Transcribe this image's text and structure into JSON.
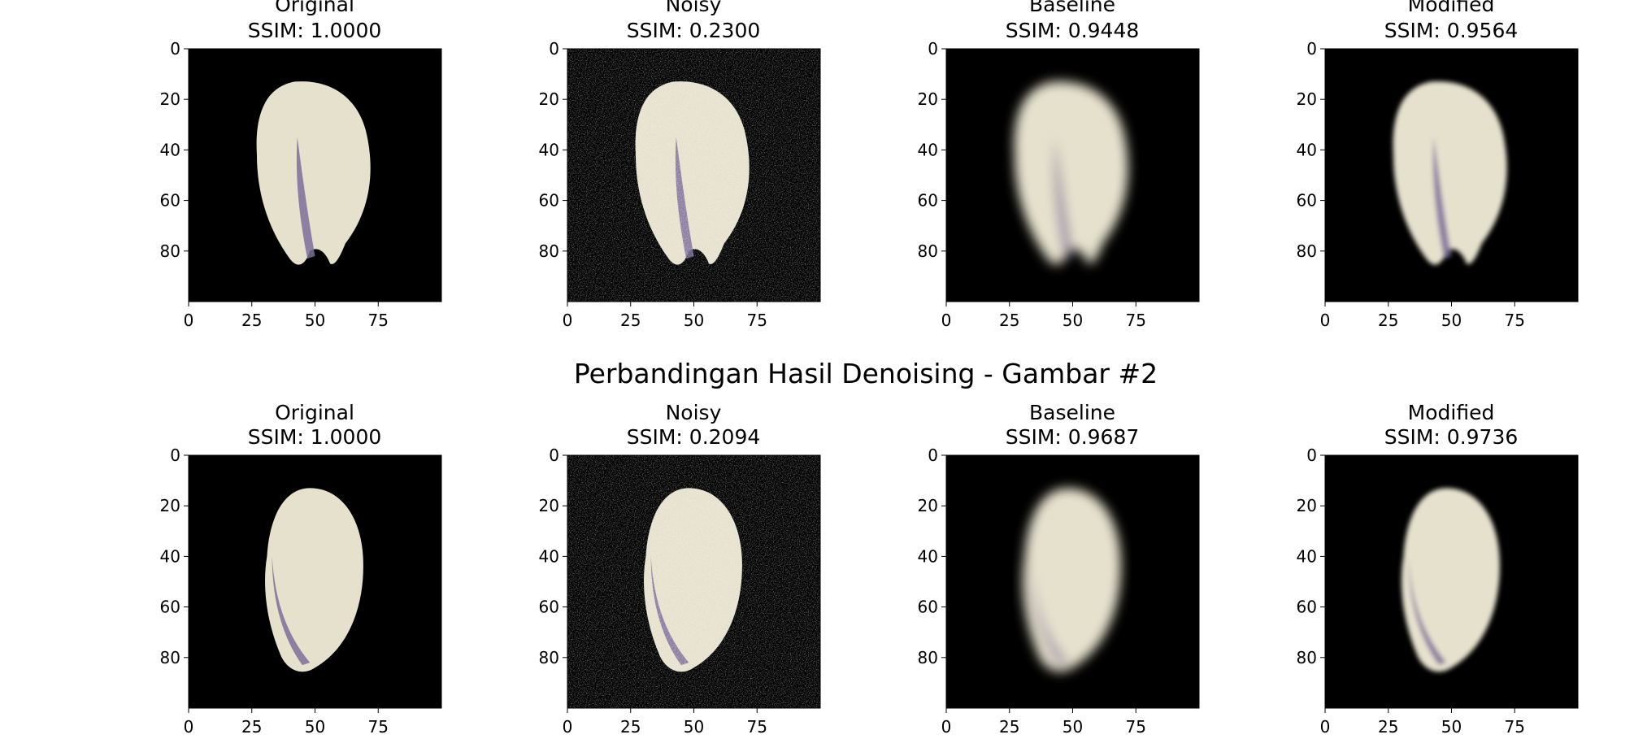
{
  "rows": [
    {
      "suptitle": "",
      "panels": [
        {
          "title_line1": "Original",
          "title_line2": "SSIM: 1.0000",
          "noise": 0,
          "blur": 0,
          "kernel": "v"
        },
        {
          "title_line1": "Noisy",
          "title_line2": "SSIM: 0.2300",
          "noise": 0.85,
          "blur": 0,
          "kernel": "v"
        },
        {
          "title_line1": "Baseline",
          "title_line2": "SSIM: 0.9448",
          "noise": 0,
          "blur": 2.2,
          "kernel": "v"
        },
        {
          "title_line1": "Modified",
          "title_line2": "SSIM: 0.9564",
          "noise": 0,
          "blur": 0.9,
          "kernel": "v"
        }
      ]
    },
    {
      "suptitle": "Perbandingan Hasil Denoising - Gambar #2",
      "panels": [
        {
          "title_line1": "Original",
          "title_line2": "SSIM: 1.0000",
          "noise": 0,
          "blur": 0,
          "kernel": "c"
        },
        {
          "title_line1": "Noisy",
          "title_line2": "SSIM: 0.2094",
          "noise": 0.85,
          "blur": 0,
          "kernel": "c"
        },
        {
          "title_line1": "Baseline",
          "title_line2": "SSIM: 0.9687",
          "noise": 0,
          "blur": 2.2,
          "kernel": "c"
        },
        {
          "title_line1": "Modified",
          "title_line2": "SSIM: 0.9736",
          "noise": 0,
          "blur": 0.9,
          "kernel": "c"
        }
      ]
    }
  ],
  "axes": {
    "xlim": [
      0,
      100
    ],
    "ylim": [
      0,
      100
    ],
    "xticks": [
      0,
      25,
      50,
      75
    ],
    "yticks": [
      0,
      20,
      40,
      60,
      80
    ]
  },
  "colors": {
    "background": "#000000",
    "kernel_fill": "#e6e1cd",
    "kernel_crease": "#7a6d9a",
    "noise": "#ffffff"
  }
}
